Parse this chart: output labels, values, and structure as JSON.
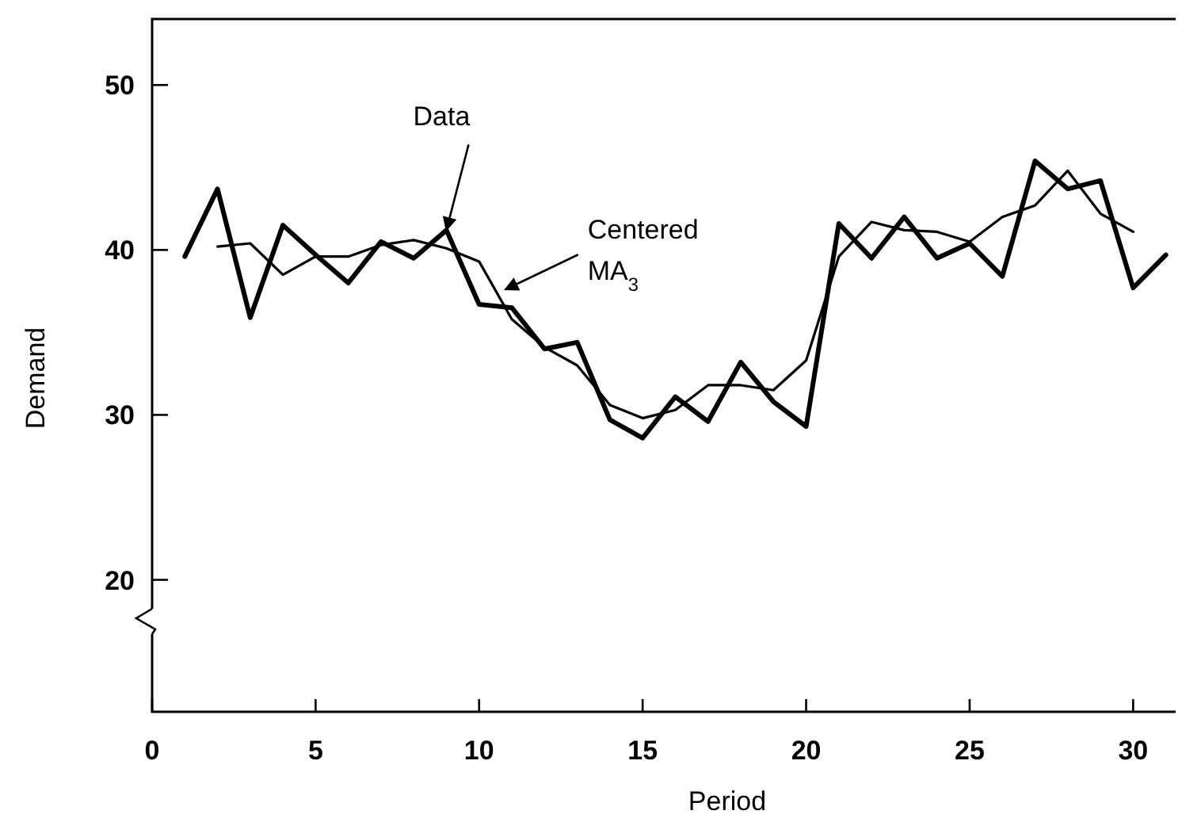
{
  "chart_data": {
    "type": "line",
    "xlabel": "Period",
    "ylabel": "Demand",
    "xlim": [
      0,
      31.3
    ],
    "ylim": [
      12,
      54
    ],
    "xticks": [
      0,
      5,
      10,
      15,
      20,
      25,
      30
    ],
    "yticks": [
      20,
      30,
      40,
      50
    ],
    "grid": false,
    "marker": "none",
    "line_style": "solid",
    "series": [
      {
        "color": "#000000",
        "x": [
          1,
          2,
          3,
          4,
          5,
          6,
          7,
          8,
          9,
          10,
          11,
          12,
          13,
          14,
          15,
          16,
          17,
          18,
          19,
          20,
          21,
          22,
          23,
          24,
          25,
          26,
          27,
          28,
          29,
          30,
          31
        ],
        "values": [
          39.6,
          43.7,
          35.9,
          41.5,
          39.7,
          38.0,
          40.5,
          39.5,
          41.2,
          36.7,
          36.5,
          34.0,
          34.4,
          29.7,
          28.6,
          31.1,
          29.6,
          33.2,
          30.8,
          29.3,
          41.6,
          39.5,
          42.0,
          39.5,
          40.4,
          38.4,
          45.4,
          43.7,
          44.2,
          37.7,
          39.7
        ]
      },
      {
        "color": "#000000",
        "x": [
          2,
          3,
          4,
          5,
          6,
          7,
          8,
          9,
          10,
          11,
          12,
          13,
          14,
          15,
          16,
          17,
          18,
          19,
          20,
          21,
          22,
          23,
          24,
          25,
          26,
          27,
          28,
          29,
          30
        ],
        "values": [
          40.2,
          40.4,
          38.5,
          39.6,
          39.6,
          40.3,
          40.6,
          40.1,
          39.3,
          35.8,
          34.1,
          33.0,
          30.6,
          29.8,
          30.3,
          31.8,
          31.8,
          31.5,
          33.3,
          39.6,
          41.7,
          41.2,
          41.1,
          40.5,
          42.0,
          42.7,
          44.8,
          42.2,
          41.1
        ]
      }
    ],
    "annotations": [
      {
        "text": "Data",
        "x": 9,
        "y": 41.2
      },
      {
        "text": "Centered MA$_{3}$",
        "x": 10.8,
        "y": 37.6
      }
    ]
  }
}
